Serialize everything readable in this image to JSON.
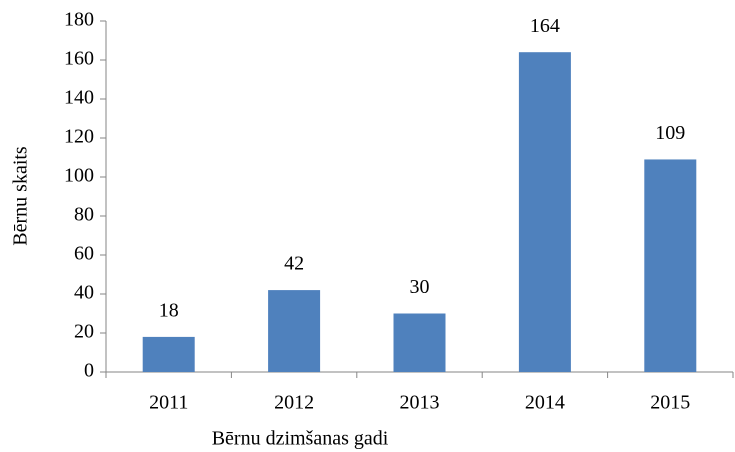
{
  "chart_data": {
    "type": "bar",
    "x_label": "Bērnu dzimšanas gadi",
    "y_label": "Bērnu skaits",
    "categories": [
      "2011",
      "2012",
      "2013",
      "2014",
      "2015"
    ],
    "values": [
      18,
      42,
      30,
      164,
      109
    ],
    "color": "#4f81bd",
    "ylim": [
      0,
      180
    ],
    "yticks": [
      0,
      20,
      40,
      60,
      80,
      100,
      120,
      140,
      160,
      180
    ],
    "grid": false
  }
}
